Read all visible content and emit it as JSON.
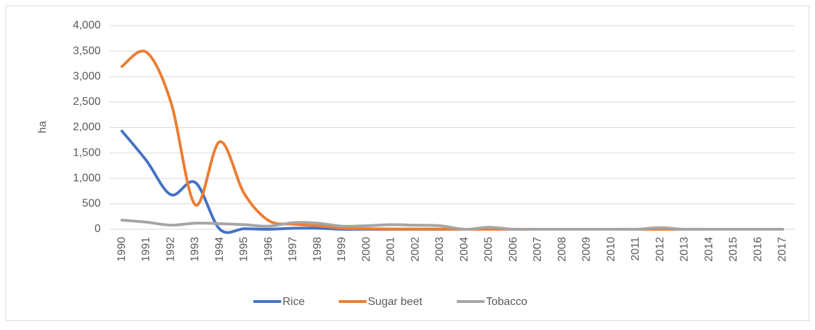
{
  "chart_data": {
    "type": "line",
    "y_label": "ha",
    "categories": [
      "1990",
      "1991",
      "1992",
      "1993",
      "1994",
      "1995",
      "1996",
      "1997",
      "1998",
      "1999",
      "2000",
      "2001",
      "2002",
      "2003",
      "2004",
      "2005",
      "2006",
      "2007",
      "2008",
      "2009",
      "2010",
      "2011",
      "2012",
      "2013",
      "2014",
      "2015",
      "2016",
      "2017"
    ],
    "series": [
      {
        "name": "Rice",
        "color": "#4472c4",
        "values": [
          1930,
          1350,
          680,
          920,
          0,
          10,
          0,
          20,
          20,
          0,
          0,
          0,
          0,
          0,
          0,
          0,
          0,
          0,
          0,
          0,
          0,
          0,
          0,
          0,
          0,
          0,
          0,
          0
        ]
      },
      {
        "name": "Sugar beet",
        "color": "#ed7d31",
        "values": [
          3200,
          3480,
          2500,
          480,
          1720,
          700,
          170,
          100,
          70,
          20,
          10,
          5,
          5,
          5,
          0,
          0,
          0,
          0,
          0,
          0,
          0,
          0,
          0,
          0,
          0,
          0,
          0,
          0
        ]
      },
      {
        "name": "Tobacco",
        "color": "#a5a5a5",
        "values": [
          180,
          140,
          80,
          120,
          110,
          90,
          60,
          130,
          120,
          60,
          70,
          90,
          80,
          70,
          0,
          40,
          0,
          0,
          0,
          0,
          0,
          0,
          30,
          0,
          0,
          0,
          0,
          0
        ]
      }
    ],
    "ylim": [
      0,
      4000
    ],
    "yticks": [
      0,
      500,
      {
        "value": 1000,
        "label": "1,000"
      },
      {
        "value": 1500,
        "label": "1,500"
      },
      {
        "value": 2000,
        "label": "2,000"
      },
      {
        "value": 2500,
        "label": "2,500"
      },
      {
        "value": 3000,
        "label": "3,000"
      },
      {
        "value": 3500,
        "label": "3,500"
      },
      {
        "value": 4000,
        "label": "4,000"
      }
    ],
    "grid": true,
    "smooth": true,
    "legend": "bottom"
  }
}
